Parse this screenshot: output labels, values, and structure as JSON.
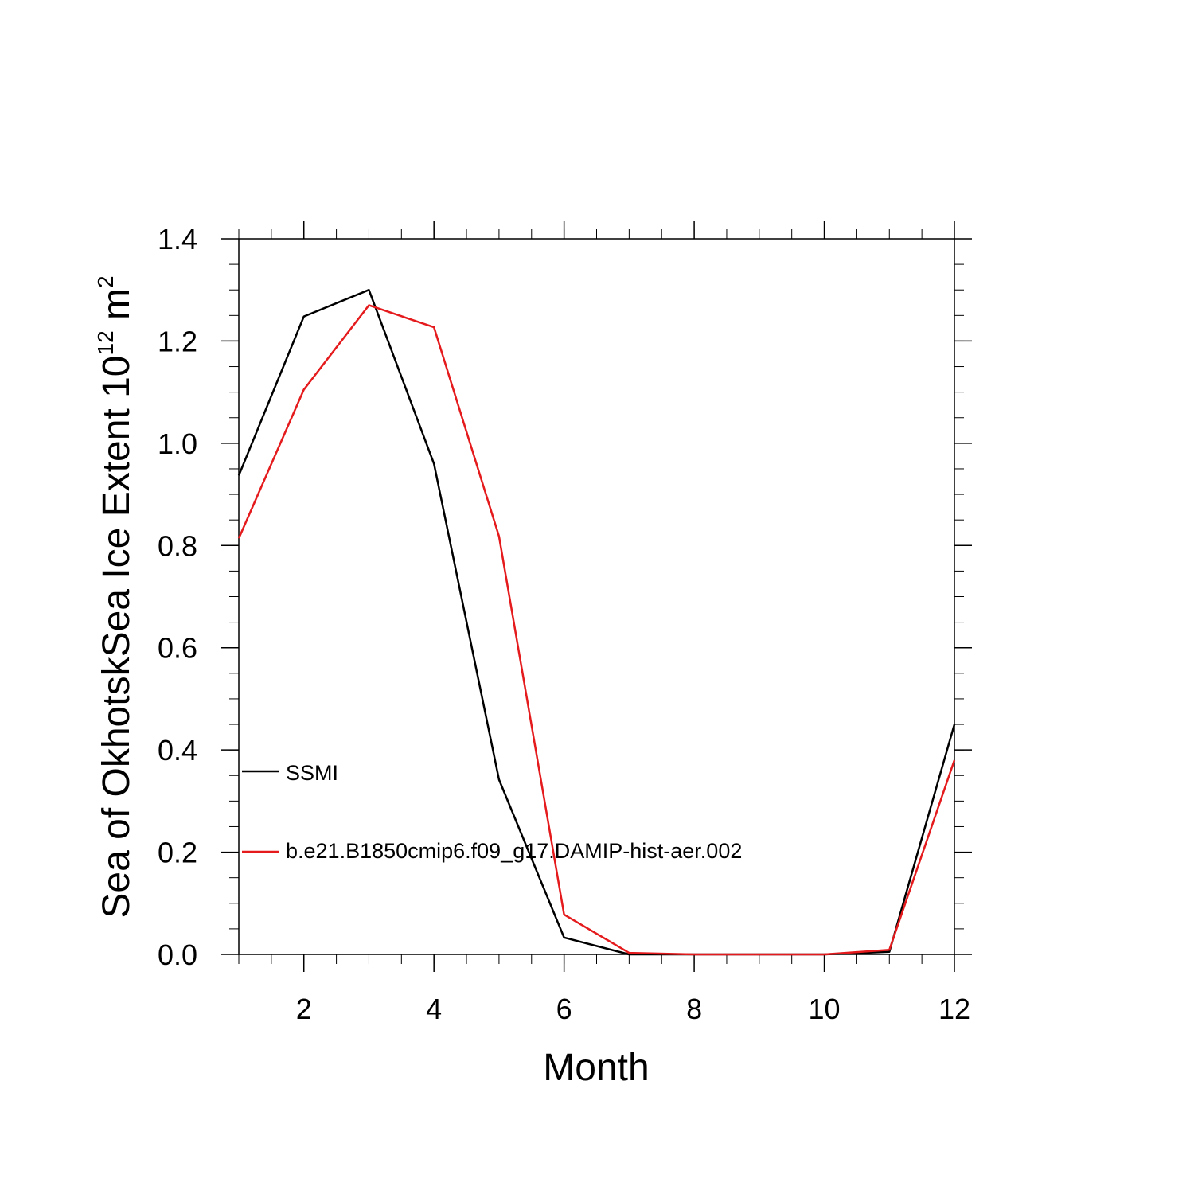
{
  "chart_data": {
    "type": "line",
    "xlabel": "Month",
    "ylabel_main": "Sea of OkhotskSea Ice Extent 10",
    "ylabel_exponent": "12",
    "ylabel_unit": " m",
    "ylabel_unit_exponent": "2",
    "xlim": [
      1,
      12
    ],
    "ylim": [
      0,
      1.4
    ],
    "x_ticks": [
      2,
      4,
      6,
      8,
      10,
      12
    ],
    "x_tick_labels": [
      "2",
      "4",
      "6",
      "8",
      "10",
      "12"
    ],
    "y_ticks": [
      0,
      0.2,
      0.4,
      0.6,
      0.8,
      1.0,
      1.2,
      1.4
    ],
    "y_tick_labels": [
      "0.0",
      "0.2",
      "0.4",
      "0.6",
      "0.8",
      "1.0",
      "1.2",
      "1.4"
    ],
    "grid": false,
    "legend_placement": "inside-left",
    "x": [
      1,
      2,
      3,
      4,
      5,
      6,
      7,
      8,
      9,
      10,
      11,
      12
    ],
    "series": [
      {
        "name": "SSMI",
        "color": "#000000",
        "values": [
          0.937,
          1.248,
          1.3,
          0.96,
          0.342,
          0.033,
          0.0,
          0.0,
          0.0,
          0.0,
          0.005,
          0.45
        ]
      },
      {
        "name": "b.e21.B1850cmip6.f09_g17.DAMIP-hist-aer.002",
        "color": "#e41a1c",
        "values": [
          0.814,
          1.105,
          1.27,
          1.227,
          0.818,
          0.078,
          0.003,
          0.0,
          0.0,
          0.0,
          0.009,
          0.38
        ]
      }
    ]
  }
}
